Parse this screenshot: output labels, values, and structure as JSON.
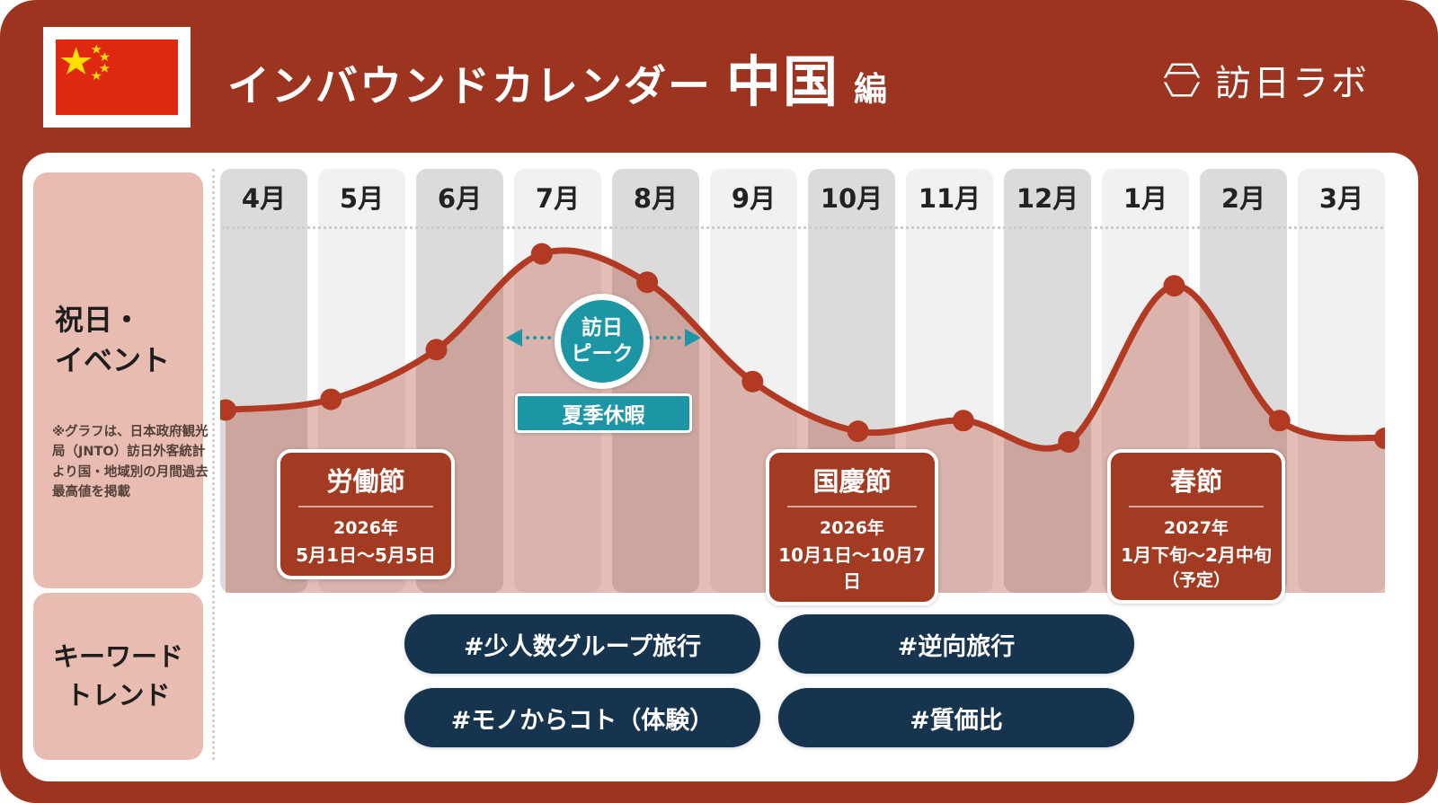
{
  "colors": {
    "frame_red": "#9d3420",
    "event_red": "#a33a22",
    "line_red": "#b23a22",
    "area_fill": "rgba(170,56,34,0.33)",
    "sidebar_pink": "#e8bcb1",
    "column_dark": "#dbdbdb",
    "column_light": "#f1f1f1",
    "teal": "#1c96a5",
    "navy_pill": "#17344e",
    "flag_red": "#de2910",
    "flag_yellow": "#ffde00"
  },
  "header": {
    "title_main": "インバウンドカレンダー",
    "title_country": "中国",
    "title_suffix": "編",
    "brand": "訪日ラボ"
  },
  "sidebar": {
    "events_title": "祝日・\nイベント",
    "note": "※グラフは、日本政府観光局（JNTO）訪日外客統計より国・地域別の月間過去最高値を掲載",
    "keywords_title": "キーワード\nトレンド"
  },
  "chart_data": {
    "type": "area",
    "categories": [
      "4月",
      "5月",
      "6月",
      "7月",
      "8月",
      "9月",
      "10月",
      "11月",
      "12月",
      "1月",
      "2月",
      "3月"
    ],
    "values": [
      49,
      52,
      66,
      93,
      85,
      57,
      43,
      46,
      40,
      84,
      46,
      41
    ],
    "ylim": [
      0,
      100
    ],
    "grid": false,
    "legend": "none",
    "line_color": "#b23a22",
    "fill_color": "rgba(170,56,34,0.33)",
    "annotations": {
      "peak_badge": "訪日\nピーク",
      "summer_label": "夏季休暇"
    }
  },
  "events": [
    {
      "title": "労働節",
      "year": "2026年",
      "dates": "5月1日〜5月5日",
      "note": ""
    },
    {
      "title": "国慶節",
      "year": "2026年",
      "dates": "10月1日〜10月7日",
      "note": ""
    },
    {
      "title": "春節",
      "year": "2027年",
      "dates": "1月下旬〜2月中旬",
      "note": "（予定）"
    }
  ],
  "keywords": [
    "#少人数グループ旅行",
    "#逆向旅行",
    "#モノからコト（体験）",
    "#質価比"
  ]
}
